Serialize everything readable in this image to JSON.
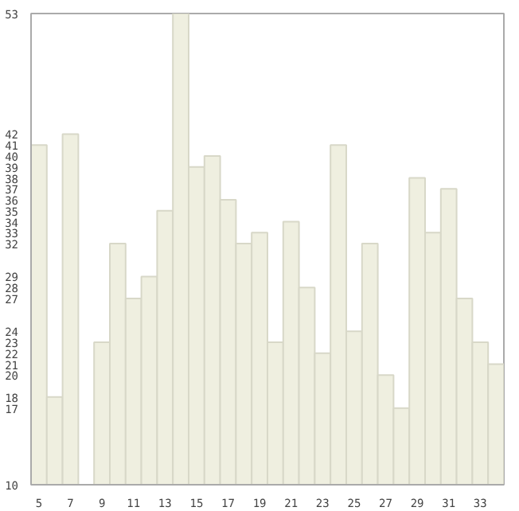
{
  "chart_data": {
    "type": "bar",
    "x": [
      5,
      6,
      7,
      8,
      9,
      10,
      11,
      12,
      13,
      14,
      15,
      16,
      17,
      18,
      19,
      20,
      21,
      22,
      23,
      24,
      25,
      26,
      27,
      28,
      29,
      30,
      31,
      32,
      33,
      34
    ],
    "values": [
      41,
      18,
      42,
      10,
      23,
      32,
      27,
      29,
      35,
      53,
      39,
      40,
      36,
      32,
      33,
      23,
      34,
      28,
      22,
      41,
      24,
      32,
      20,
      17,
      38,
      33,
      37,
      27,
      23,
      21
    ],
    "color": "#efefe0",
    "xlim": [
      4.5,
      34.5
    ],
    "xticks": [
      5,
      7,
      9,
      11,
      13,
      15,
      17,
      19,
      21,
      23,
      25,
      27,
      29,
      31,
      33
    ],
    "ylim": [
      10,
      53
    ],
    "yticks": [
      10,
      17,
      18,
      20,
      21,
      22,
      23,
      24,
      27,
      28,
      29,
      32,
      33,
      34,
      35,
      36,
      37,
      38,
      39,
      40,
      41,
      42,
      53
    ],
    "grid": false
  }
}
